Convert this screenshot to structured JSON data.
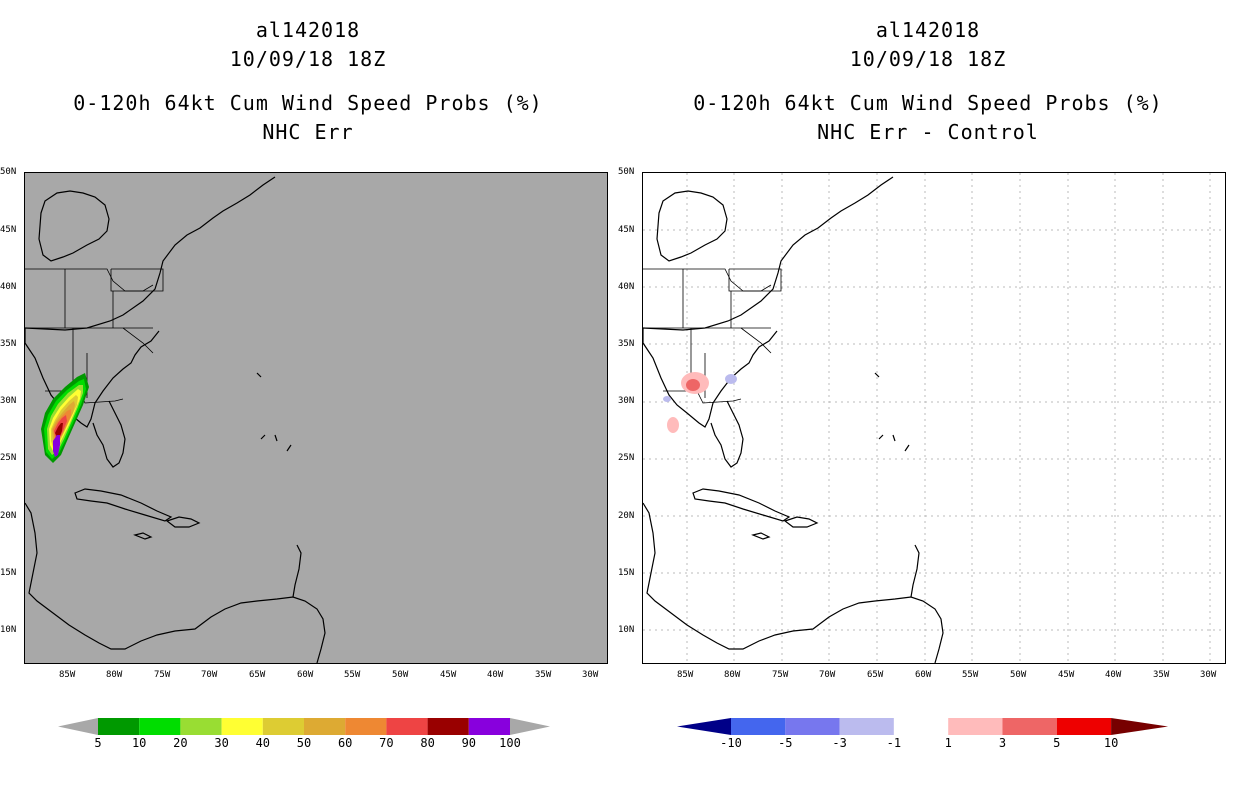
{
  "left_panel": {
    "title_lines": [
      "al142018",
      "10/09/18 18Z",
      "0-120h 64kt Cum Wind Speed Probs (%)",
      "NHC Err"
    ],
    "background_color": "#a8a8a8",
    "colorbar": {
      "colors": [
        "#009900",
        "#00dd00",
        "#99dd33",
        "#ffff33",
        "#ddcc33",
        "#ddaa33",
        "#ee8833",
        "#ee4444",
        "#990000",
        "#8800dd"
      ],
      "labels": [
        "5",
        "10",
        "20",
        "30",
        "40",
        "50",
        "60",
        "70",
        "80",
        "90",
        "100"
      ],
      "end_color": "#a8a8a8"
    }
  },
  "right_panel": {
    "title_lines": [
      "al142018",
      "10/09/18 18Z",
      "0-120h 64kt Cum Wind Speed Probs (%)",
      "NHC Err - Control"
    ],
    "background_color": "#ffffff",
    "colorbar": {
      "colors": [
        "#0000cc",
        "#4466ee",
        "#7777ee",
        "#bbbbee",
        "#ffffff",
        "#ffbbbb",
        "#ee6666",
        "#ee0000"
      ],
      "labels": [
        "-10",
        "-5",
        "-3",
        "-1",
        "1",
        "3",
        "5",
        "10"
      ],
      "low_end_color": "#000088",
      "high_end_color": "#770000"
    }
  },
  "lat_labels": [
    "50N",
    "45N",
    "40N",
    "35N",
    "30N",
    "25N",
    "20N",
    "15N",
    "10N"
  ],
  "lon_labels": [
    "85W",
    "80W",
    "75W",
    "70W",
    "65W",
    "60W",
    "55W",
    "50W",
    "45W",
    "40W",
    "35W",
    "30W"
  ]
}
